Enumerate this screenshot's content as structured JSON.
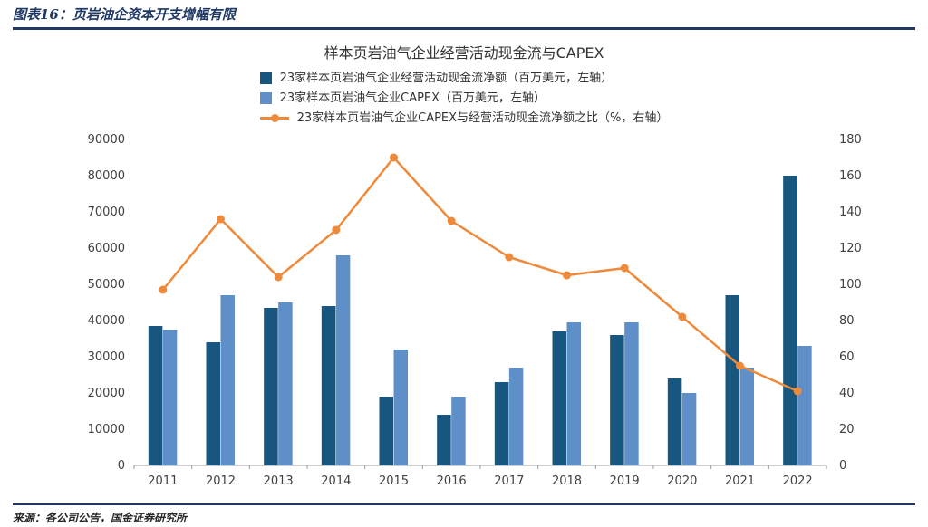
{
  "page": {
    "header_title": "图表16：页岩油企资本开支增幅有限",
    "source": "来源：各公司公告，国金证券研究所"
  },
  "colors": {
    "header_navy": "#1F3864",
    "bar_dark": "#17567E",
    "bar_light": "#5E8FC9",
    "line_orange": "#ED8A3C",
    "axis_gray": "#9A9A9A",
    "text_dark": "#333333"
  },
  "chart_data": {
    "type": "bar",
    "title": "样本页岩油气企业经营活动现金流与CAPEX",
    "categories": [
      "2011",
      "2012",
      "2013",
      "2014",
      "2015",
      "2016",
      "2017",
      "2018",
      "2019",
      "2020",
      "2021",
      "2022"
    ],
    "series": [
      {
        "name": "23家样本页岩油气企业经营活动现金流净额（百万美元，左轴）",
        "type": "bar",
        "axis": "left",
        "color": "#17567E",
        "values": [
          38500,
          34000,
          43500,
          44000,
          19000,
          14000,
          23000,
          37000,
          36000,
          24000,
          47000,
          80000
        ]
      },
      {
        "name": "23家样本页岩油气企业CAPEX（百万美元，左轴）",
        "type": "bar",
        "axis": "left",
        "color": "#5E8FC9",
        "values": [
          37500,
          47000,
          45000,
          58000,
          32000,
          19000,
          27000,
          39500,
          39500,
          20000,
          27000,
          33000
        ]
      },
      {
        "name": "23家样本页岩油气企业CAPEX与经营活动现金流净额之比（%，右轴）",
        "type": "line",
        "axis": "right",
        "color": "#ED8A3C",
        "values": [
          97,
          136,
          104,
          130,
          170,
          135,
          115,
          105,
          109,
          82,
          55,
          41
        ]
      }
    ],
    "left_axis": {
      "min": 0,
      "max": 90000,
      "step": 10000
    },
    "right_axis": {
      "min": 0,
      "max": 180,
      "step": 20
    },
    "grid": false,
    "legend_position": "top"
  }
}
